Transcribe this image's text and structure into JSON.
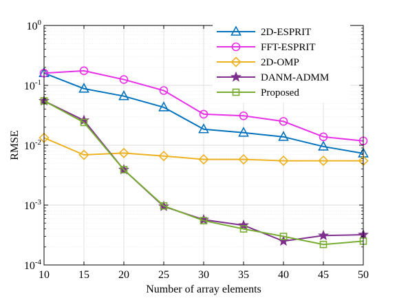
{
  "chart_data": {
    "type": "line",
    "title": "",
    "xlabel": "Number of array elements",
    "ylabel": "RMSE",
    "x": [
      10,
      15,
      20,
      25,
      30,
      35,
      40,
      45,
      50
    ],
    "xlim": [
      10,
      50
    ],
    "ylim": [
      0.0001,
      1
    ],
    "yscale": "log",
    "grid": true,
    "legend_position": "top-right",
    "x_ticks": [
      "10",
      "15",
      "20",
      "25",
      "30",
      "35",
      "40",
      "45",
      "50"
    ],
    "y_ticks": [
      {
        "base": "10",
        "exp": "-4",
        "value": 0.0001
      },
      {
        "base": "10",
        "exp": "-3",
        "value": 0.001
      },
      {
        "base": "10",
        "exp": "-2",
        "value": 0.01
      },
      {
        "base": "10",
        "exp": "-1",
        "value": 0.1
      },
      {
        "base": "10",
        "exp": "0",
        "value": 1
      }
    ],
    "series": [
      {
        "name": "2D-ESPRIT",
        "color": "#0072BD",
        "marker": "triangle",
        "values": [
          0.16,
          0.088,
          0.066,
          0.043,
          0.0185,
          0.0162,
          0.0138,
          0.0095,
          0.0073
        ]
      },
      {
        "name": "FFT-ESPRIT",
        "color": "#E62FE6",
        "marker": "circle",
        "values": [
          0.16,
          0.175,
          0.125,
          0.082,
          0.033,
          0.031,
          0.025,
          0.0138,
          0.0118
        ]
      },
      {
        "name": "2D-OMP",
        "color": "#EDB120",
        "marker": "diamond",
        "values": [
          0.0133,
          0.0069,
          0.0074,
          0.0066,
          0.0058,
          0.0058,
          0.0055,
          0.0055,
          0.0055
        ]
      },
      {
        "name": "DANM-ADMM",
        "color": "#7E2F8E",
        "marker": "star",
        "values": [
          0.055,
          0.026,
          0.0039,
          0.00095,
          0.00057,
          0.00046,
          0.00025,
          0.00031,
          0.00032
        ]
      },
      {
        "name": "Proposed",
        "color": "#77AC30",
        "marker": "square",
        "values": [
          0.055,
          0.024,
          0.0039,
          0.00097,
          0.00055,
          0.0004,
          0.0003,
          0.00022,
          0.00025
        ]
      }
    ]
  }
}
